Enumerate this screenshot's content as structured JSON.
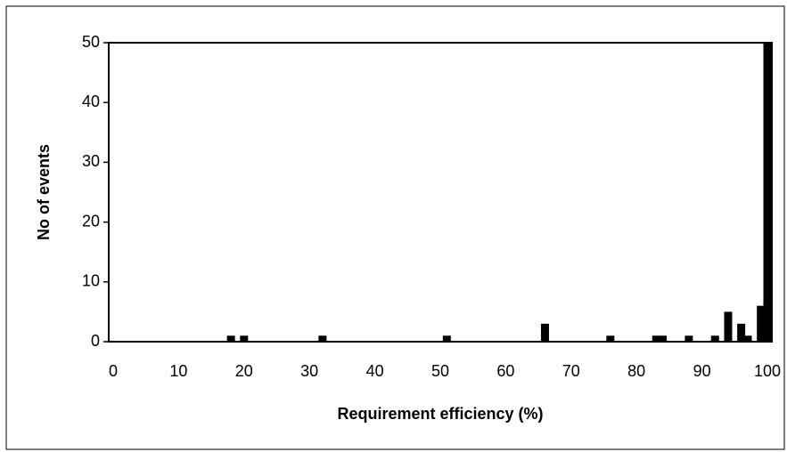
{
  "chart_data": {
    "type": "bar",
    "x_label": "Requirement efficiency (%)",
    "y_label": "No of events",
    "x": [
      18,
      20,
      32,
      51,
      66,
      76,
      83,
      84,
      88,
      92,
      94,
      96,
      97,
      99,
      100
    ],
    "values": [
      1,
      1,
      1,
      1,
      3,
      1,
      1,
      1,
      1,
      1,
      5,
      3,
      1,
      6,
      50
    ],
    "color": "#000000",
    "xlim": [
      0,
      100
    ],
    "xticks": [
      0,
      10,
      20,
      30,
      40,
      50,
      60,
      70,
      80,
      90,
      100
    ],
    "ylim": [
      0,
      50
    ],
    "yticks": [
      0,
      10,
      20,
      30,
      40,
      50
    ]
  }
}
